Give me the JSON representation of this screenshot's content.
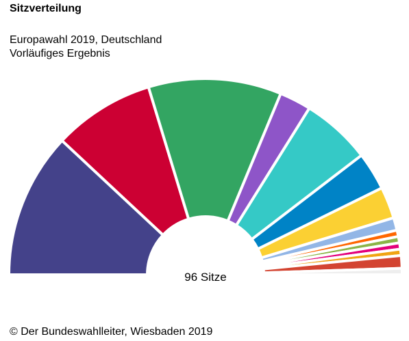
{
  "header": {
    "title": "Sitzverteilung",
    "subtitle_line1": "Europawahl 2019, Deutschland",
    "subtitle_line2": "Vorläufiges Ergebnis"
  },
  "chart_data": {
    "type": "pie",
    "variant": "parliament-half-donut",
    "total_label": "96 Sitze",
    "total_seats": 96,
    "slices": [
      {
        "seats": 23,
        "color": "#44428a"
      },
      {
        "seats": 16,
        "color": "#cc0033"
      },
      {
        "seats": 21,
        "color": "#33a562"
      },
      {
        "seats": 5,
        "color": "#8e55c8"
      },
      {
        "seats": 11,
        "color": "#35c9c6"
      },
      {
        "seats": 6,
        "color": "#0083c6"
      },
      {
        "seats": 5,
        "color": "#fbd033"
      },
      {
        "seats": 2,
        "color": "#92b6e6"
      },
      {
        "seats": 1,
        "color": "#ff6600"
      },
      {
        "seats": 1,
        "color": "#8ab447"
      },
      {
        "seats": 1,
        "color": "#e3007a"
      },
      {
        "seats": 1,
        "color": "#f0a413"
      },
      {
        "seats": 2,
        "color": "#d34431"
      },
      {
        "seats": 1,
        "color": "#eeeeee"
      }
    ]
  },
  "footer": {
    "credit": "© Der Bundeswahlleiter, Wiesbaden 2019"
  }
}
